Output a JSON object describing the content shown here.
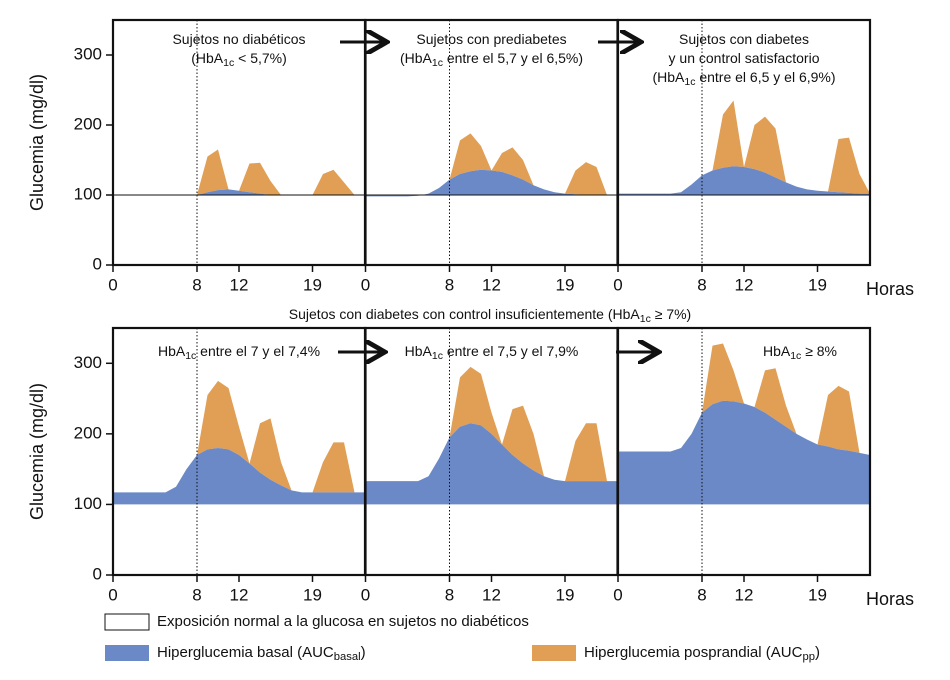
{
  "chart_data": [
    {
      "type": "area",
      "title": [
        [
          "Sujetos no diabéticos"
        ],
        [
          "(HbA",
          {
            "sub": "1c"
          },
          " < 5,7%)"
        ]
      ],
      "x": [
        0,
        1,
        2,
        3,
        4,
        5,
        6,
        7,
        8,
        9,
        10,
        11,
        12,
        13,
        14,
        15,
        16,
        17,
        18,
        19,
        20,
        21,
        22,
        23,
        24
      ],
      "basal": [
        100,
        100,
        100,
        100,
        100,
        100,
        100,
        100,
        100,
        104,
        107,
        108,
        106,
        104,
        102,
        100,
        100,
        100,
        100,
        100,
        100,
        100,
        100,
        100,
        100
      ],
      "postprandial": [
        null,
        null,
        null,
        null,
        null,
        null,
        null,
        null,
        100,
        155,
        165,
        108,
        106,
        145,
        146,
        120,
        100,
        null,
        null,
        100,
        130,
        136,
        118,
        100,
        null
      ],
      "xlim": [
        0,
        24
      ],
      "xticks": [
        0,
        8,
        12,
        19
      ],
      "ylim": [
        0,
        350
      ],
      "yticks": [
        0,
        100,
        200,
        300
      ],
      "baseline": true
    },
    {
      "type": "area",
      "title": [
        [
          "Sujetos con prediabetes"
        ],
        [
          "(HbA",
          {
            "sub": "1c"
          },
          " entre el 5,7 y el 6,5%)"
        ]
      ],
      "x": [
        0,
        1,
        2,
        3,
        4,
        5,
        6,
        7,
        8,
        9,
        10,
        11,
        12,
        13,
        14,
        15,
        16,
        17,
        18,
        19,
        20,
        21,
        22,
        23,
        24
      ],
      "basal": [
        98,
        98,
        98,
        98,
        98,
        99,
        102,
        110,
        122,
        130,
        134,
        136,
        135,
        133,
        128,
        122,
        114,
        108,
        104,
        102,
        101,
        100,
        100,
        100,
        100
      ],
      "postprandial": [
        null,
        null,
        null,
        null,
        null,
        null,
        null,
        null,
        122,
        178,
        188,
        170,
        135,
        160,
        168,
        150,
        114,
        null,
        null,
        102,
        135,
        147,
        140,
        100,
        null
      ],
      "xlim": [
        0,
        24
      ],
      "xticks": [
        0,
        8,
        12,
        19
      ],
      "ylim": [
        0,
        350
      ],
      "baseline": true
    },
    {
      "type": "area",
      "title": [
        [
          "Sujetos con diabetes"
        ],
        [
          "y un control satisfactorio"
        ],
        [
          "(HbA",
          {
            "sub": "1c"
          },
          " entre el 6,5 y el 6,9%)"
        ]
      ],
      "x": [
        0,
        1,
        2,
        3,
        4,
        5,
        6,
        7,
        8,
        9,
        10,
        11,
        12,
        13,
        14,
        15,
        16,
        17,
        18,
        19,
        20,
        21,
        22,
        23,
        24
      ],
      "basal": [
        102,
        102,
        102,
        102,
        102,
        102,
        104,
        115,
        128,
        135,
        139,
        141,
        140,
        137,
        132,
        125,
        118,
        112,
        108,
        106,
        105,
        104,
        103,
        102,
        102
      ],
      "postprandial": [
        null,
        null,
        null,
        null,
        null,
        null,
        null,
        null,
        null,
        135,
        215,
        235,
        140,
        200,
        212,
        195,
        118,
        null,
        null,
        null,
        105,
        180,
        182,
        130,
        102
      ],
      "xlim": [
        0,
        24
      ],
      "xticks": [
        0,
        8,
        12,
        19
      ],
      "ylim": [
        0,
        350
      ],
      "baseline": true
    },
    {
      "type": "area",
      "title": [
        [
          "HbA",
          {
            "sub": "1c"
          },
          " entre el 7 y el 7,4%"
        ]
      ],
      "x": [
        0,
        1,
        2,
        3,
        4,
        5,
        6,
        7,
        8,
        9,
        10,
        11,
        12,
        13,
        14,
        15,
        16,
        17,
        18,
        19,
        20,
        21,
        22,
        23,
        24
      ],
      "basal": [
        117,
        117,
        117,
        117,
        117,
        117,
        125,
        150,
        170,
        178,
        180,
        178,
        170,
        158,
        145,
        135,
        127,
        120,
        117,
        117,
        117,
        117,
        117,
        117,
        117
      ],
      "postprandial": [
        null,
        null,
        null,
        null,
        null,
        null,
        null,
        null,
        170,
        255,
        275,
        265,
        210,
        158,
        215,
        222,
        160,
        120,
        null,
        117,
        160,
        188,
        188,
        117,
        null
      ],
      "xlim": [
        0,
        24
      ],
      "xticks": [
        0,
        8,
        12,
        19
      ],
      "ylim": [
        0,
        350
      ],
      "yticks": [
        0,
        100,
        200,
        300
      ],
      "baseline": false
    },
    {
      "type": "area",
      "title": [
        [
          "HbA",
          {
            "sub": "1c"
          },
          " entre el 7,5 y el 7,9%"
        ]
      ],
      "x": [
        0,
        1,
        2,
        3,
        4,
        5,
        6,
        7,
        8,
        9,
        10,
        11,
        12,
        13,
        14,
        15,
        16,
        17,
        18,
        19,
        20,
        21,
        22,
        23,
        24
      ],
      "basal": [
        133,
        133,
        133,
        133,
        133,
        133,
        140,
        165,
        195,
        210,
        215,
        212,
        200,
        185,
        170,
        158,
        148,
        140,
        135,
        133,
        133,
        133,
        133,
        133,
        133
      ],
      "postprandial": [
        null,
        null,
        null,
        null,
        null,
        null,
        null,
        null,
        195,
        280,
        295,
        285,
        230,
        185,
        235,
        240,
        200,
        140,
        null,
        133,
        190,
        215,
        215,
        133,
        null
      ],
      "xlim": [
        0,
        24
      ],
      "xticks": [
        0,
        8,
        12,
        19
      ],
      "ylim": [
        0,
        350
      ],
      "baseline": false
    },
    {
      "type": "area",
      "title": [
        [
          "HbA",
          {
            "sub": "1c"
          },
          " ≥ 8%"
        ]
      ],
      "x": [
        0,
        1,
        2,
        3,
        4,
        5,
        6,
        7,
        8,
        9,
        10,
        11,
        12,
        13,
        14,
        15,
        16,
        17,
        18,
        19,
        20,
        21,
        22,
        23,
        24
      ],
      "basal": [
        175,
        175,
        175,
        175,
        175,
        175,
        180,
        200,
        230,
        242,
        247,
        246,
        243,
        238,
        230,
        220,
        210,
        200,
        192,
        185,
        182,
        178,
        176,
        173,
        170
      ],
      "postprandial": [
        null,
        null,
        null,
        null,
        null,
        null,
        null,
        null,
        230,
        325,
        328,
        290,
        243,
        238,
        290,
        293,
        240,
        200,
        null,
        185,
        255,
        268,
        260,
        173,
        null
      ],
      "xlim": [
        0,
        24
      ],
      "xticks": [
        0,
        8,
        12,
        19
      ],
      "ylim": [
        0,
        350
      ],
      "baseline": false
    }
  ],
  "normal_level": 100,
  "dotted_x": 8,
  "axis_labels": {
    "y": "Glucemia (mg/dl)",
    "x": "Horas"
  },
  "subtitle": [
    "Sujetos con diabetes con control insuficientemente (HbA",
    {
      "sub": "1c"
    },
    " ≥ 7%)"
  ],
  "legend": [
    {
      "name": [
        "Exposición normal a la glucosa en sujetos no diabéticos"
      ],
      "color": "#ffffff"
    },
    {
      "name": [
        "Hiperglucemia basal (AUC",
        {
          "sub": "basal"
        },
        ")"
      ],
      "color": "#6b89c6"
    },
    {
      "name": [
        "Hiperglucemia posprandial (AUC",
        {
          "sub": "pp"
        },
        ")"
      ],
      "color": "#e09f55"
    }
  ]
}
